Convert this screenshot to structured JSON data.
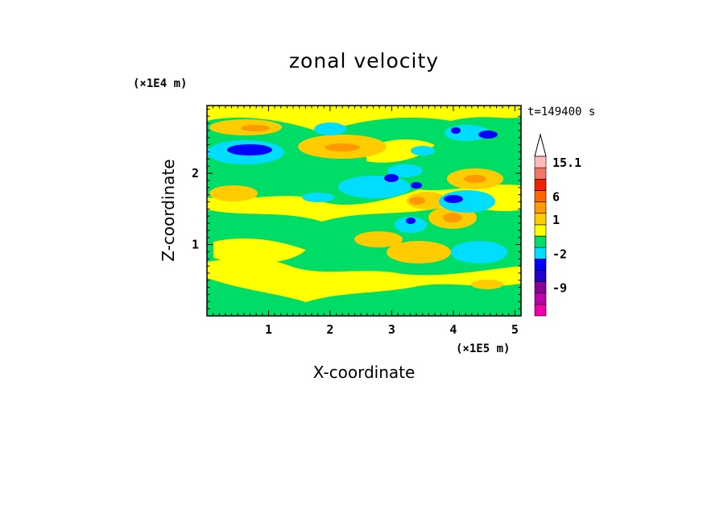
{
  "chart_data": {
    "type": "heatmap",
    "title": "zonal velocity",
    "xlabel": "X-coordinate",
    "ylabel": "Z-coordinate",
    "x_multiplier": "(×1E5 m)",
    "y_multiplier": "(×1E4 m)",
    "time_label": "t=149400 s",
    "xlim": [
      0,
      5.1
    ],
    "ylim": [
      0,
      2.95
    ],
    "x_ticks": [
      "1",
      "2",
      "3",
      "4",
      "5"
    ],
    "y_ticks": [
      "1",
      "2"
    ],
    "colorbar": {
      "levels": [
        {
          "label": "",
          "color": "#ee00aa"
        },
        {
          "label": "",
          "color": "#bb00aa"
        },
        {
          "label": "-9",
          "color": "#880099"
        },
        {
          "label": "",
          "color": "#2200cc"
        },
        {
          "label": "",
          "color": "#0000ff"
        },
        {
          "label": "-2",
          "color": "#00ddff"
        },
        {
          "label": "",
          "color": "#00dd66"
        },
        {
          "label": "",
          "color": "#ffff00"
        },
        {
          "label": "1",
          "color": "#ffcc00"
        },
        {
          "label": "",
          "color": "#ff9900"
        },
        {
          "label": "6",
          "color": "#ff6600"
        },
        {
          "label": "",
          "color": "#ee2200"
        },
        {
          "label": "",
          "color": "#ee7766"
        },
        {
          "label": "15.1",
          "color": "#ffbbbb"
        }
      ]
    },
    "features": [
      {
        "x": 0.8,
        "z": 2.3,
        "value": "negative"
      },
      {
        "x": 2.9,
        "z": 1.9,
        "value": "negative"
      },
      {
        "x": 3.35,
        "z": 1.8,
        "value": "negative"
      },
      {
        "x": 4.0,
        "z": 1.6,
        "value": "negative"
      },
      {
        "x": 4.0,
        "z": 2.6,
        "value": "negative"
      },
      {
        "x": 4.5,
        "z": 2.55,
        "value": "negative"
      },
      {
        "x": 3.3,
        "z": 1.35,
        "value": "negative"
      },
      {
        "x": 2.1,
        "z": 2.35,
        "value": "positive"
      },
      {
        "x": 3.4,
        "z": 1.6,
        "value": "positive"
      },
      {
        "x": 3.95,
        "z": 1.35,
        "value": "positive"
      },
      {
        "x": 4.4,
        "z": 1.95,
        "value": "positive"
      },
      {
        "x": 0.6,
        "z": 2.65,
        "value": "positive"
      }
    ]
  }
}
